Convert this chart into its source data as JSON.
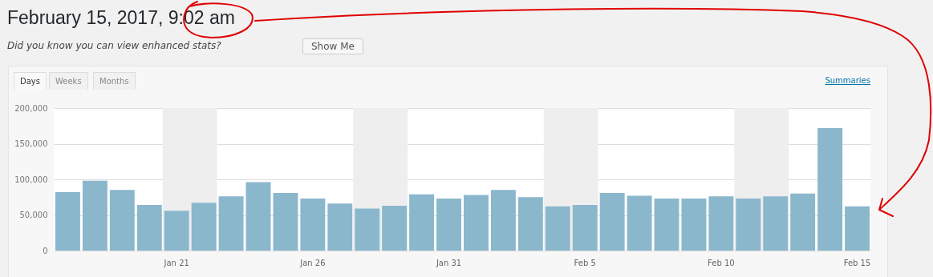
{
  "chart_data": {
    "type": "bar",
    "title": "February 15, 2017, 9:02 am",
    "subtitle": "Did you know you can view enhanced stats?",
    "annotations": [
      "Show Me",
      "Days",
      "Weeks",
      "Months",
      "Summaries"
    ],
    "x": [
      "2017-01-17",
      "2017-01-18",
      "2017-01-19",
      "2017-01-20",
      "2017-01-21",
      "2017-01-22",
      "2017-01-23",
      "2017-01-24",
      "2017-01-25",
      "2017-01-26",
      "2017-01-27",
      "2017-01-28",
      "2017-01-29",
      "2017-01-30",
      "2017-01-31",
      "2017-02-01",
      "2017-02-02",
      "2017-02-03",
      "2017-02-04",
      "2017-02-05",
      "2017-02-06",
      "2017-02-07",
      "2017-02-08",
      "2017-02-09",
      "2017-02-10",
      "2017-02-11",
      "2017-02-12",
      "2017-02-13",
      "2017-02-14",
      "2017-02-15"
    ],
    "values": [
      82000,
      98000,
      85000,
      64000,
      56000,
      67000,
      76000,
      96000,
      81000,
      73000,
      66000,
      59000,
      63000,
      79000,
      73000,
      78000,
      85000,
      75000,
      62000,
      64000,
      81000,
      77000,
      73000,
      73000,
      76000,
      73000,
      76000,
      80000,
      172000,
      62000
    ],
    "color": "#8bb7cc",
    "xlim": [
      "2017-01-16T12:00",
      "2017-02-15T12:00"
    ],
    "xticks": [
      {
        "value": "2017-01-21",
        "label": "Jan 21"
      },
      {
        "value": "2017-01-26",
        "label": "Jan 26"
      },
      {
        "value": "2017-01-31",
        "label": "Jan 31"
      },
      {
        "value": "2017-02-05",
        "label": "Feb 5"
      },
      {
        "value": "2017-02-10",
        "label": "Feb 10"
      },
      {
        "value": "2017-02-15",
        "label": "Feb 15"
      }
    ],
    "ylim": [
      0,
      200000
    ],
    "yticks": [
      {
        "value": 0,
        "label": "0"
      },
      {
        "value": 50000,
        "label": "50,000"
      },
      {
        "value": 100000,
        "label": "100,000"
      },
      {
        "value": 150000,
        "label": "150,000"
      },
      {
        "value": 200000,
        "label": "200,000"
      }
    ],
    "grid": "y",
    "bands": [
      {
        "axis": "x",
        "from": "2017-01-20T12:00",
        "to": "2017-01-22T12:00",
        "color": "#eeeeee"
      },
      {
        "axis": "x",
        "from": "2017-01-27T12:00",
        "to": "2017-01-29T12:00",
        "color": "#eeeeee"
      },
      {
        "axis": "x",
        "from": "2017-02-03T12:00",
        "to": "2017-02-05T12:00",
        "color": "#eeeeee"
      },
      {
        "axis": "x",
        "from": "2017-02-10T12:00",
        "to": "2017-02-12T12:00",
        "color": "#eeeeee"
      }
    ]
  }
}
